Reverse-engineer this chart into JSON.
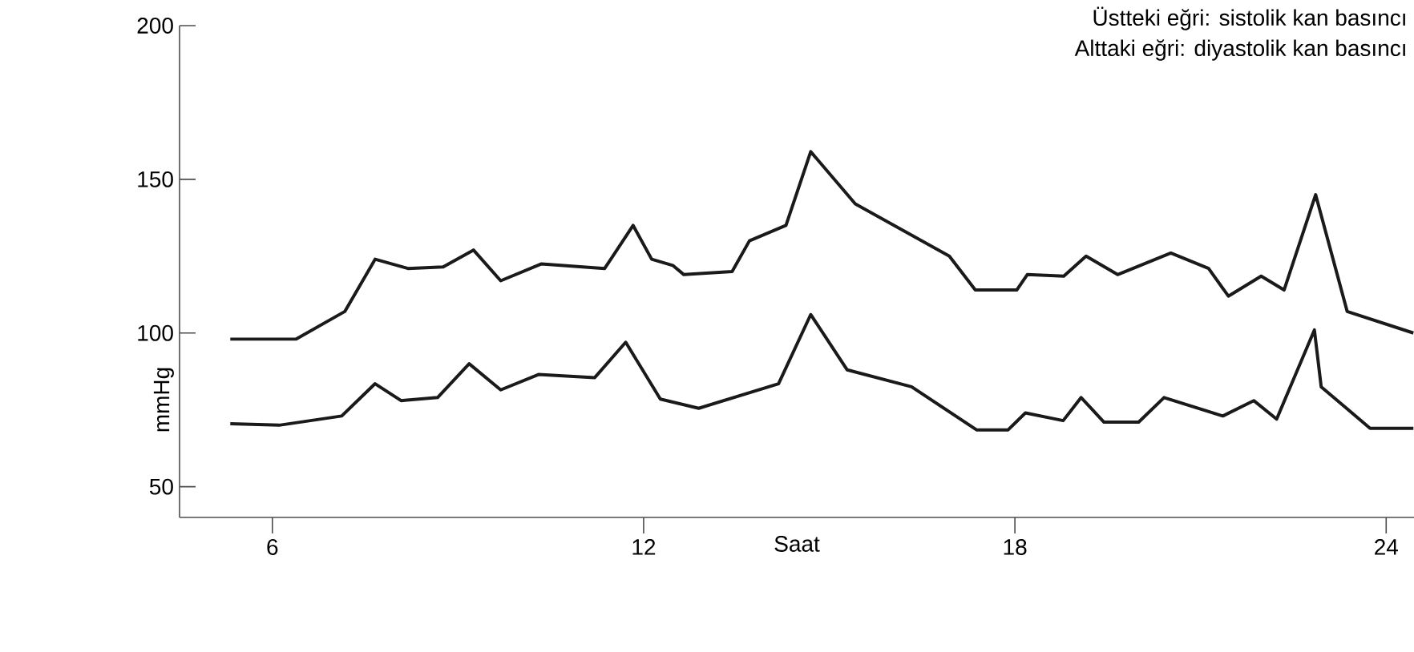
{
  "chart_data": {
    "type": "line",
    "xlabel": "Saat",
    "ylabel": "mmHg",
    "annotations": [
      "Üstteki eğri: sistolik kan basıncı",
      "Alttaki eğri: diyastolik kan basıncı"
    ],
    "xlim": [
      4.5,
      24.45
    ],
    "ylim": [
      40,
      200
    ],
    "xticks": [
      6,
      12,
      18,
      24
    ],
    "yticks": [
      50,
      100,
      150,
      200
    ],
    "marker": "none",
    "line_style": "solid",
    "series": [
      {
        "color": "#1a1a1a",
        "x": [
          5.32,
          6.38,
          7.17,
          7.66,
          8.19,
          8.76,
          9.25,
          9.69,
          10.35,
          11.37,
          11.83,
          12.13,
          12.47,
          12.65,
          13.43,
          13.71,
          14.3,
          14.7,
          15.42,
          16.94,
          17.36,
          18.03,
          18.2,
          18.79,
          19.15,
          19.66,
          20.52,
          21.13,
          21.45,
          21.98,
          22.35,
          22.86,
          23.37,
          24.44
        ],
        "values": [
          98,
          98,
          107,
          124,
          121,
          121.5,
          127,
          117,
          122.5,
          121,
          135,
          124,
          122,
          119,
          120,
          130,
          135,
          159,
          142,
          125,
          114,
          114,
          119,
          118.5,
          125,
          119,
          126,
          121,
          112,
          118.5,
          114,
          145,
          107,
          100
        ]
      },
      {
        "color": "#1a1a1a",
        "x": [
          5.32,
          6.11,
          7.12,
          7.66,
          8.08,
          8.67,
          9.18,
          9.69,
          10.3,
          11.21,
          11.71,
          12.27,
          12.89,
          14.18,
          14.7,
          15.29,
          16.33,
          17.38,
          17.89,
          18.17,
          18.78,
          19.07,
          19.44,
          20.0,
          20.41,
          21.36,
          21.86,
          22.23,
          22.84,
          22.95,
          23.74,
          24.44
        ],
        "values": [
          70.5,
          70,
          73,
          83.5,
          78,
          79,
          90,
          81.5,
          86.5,
          85.5,
          97,
          78.5,
          75.5,
          83.5,
          106,
          88,
          82.5,
          68.5,
          68.5,
          74,
          71.5,
          79,
          71,
          71,
          79,
          73,
          78,
          72,
          101,
          82.5,
          69,
          69
        ]
      }
    ]
  }
}
